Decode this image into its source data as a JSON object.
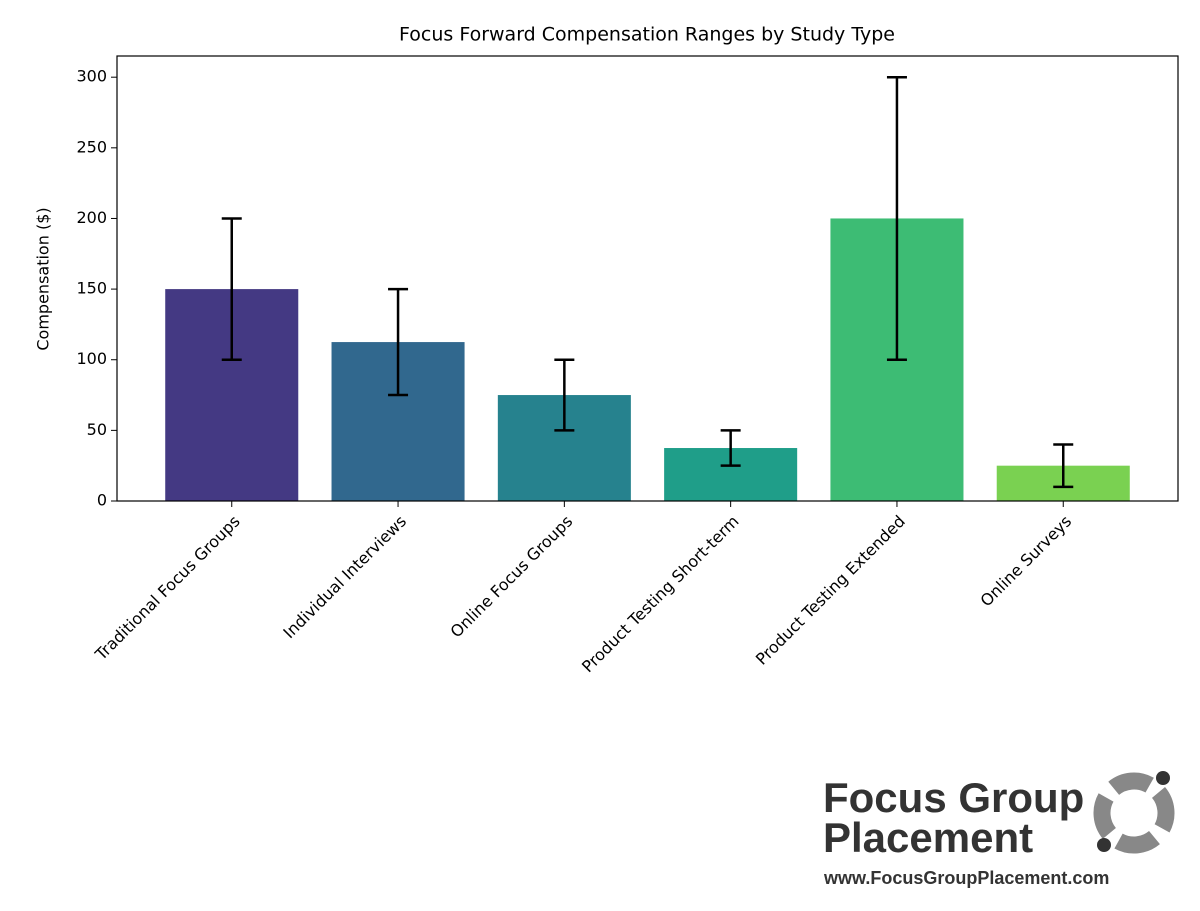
{
  "chart_data": {
    "type": "bar",
    "title": "Focus Forward Compensation Ranges by Study Type",
    "y_label": "Compensation ($)",
    "categories": [
      "Traditional Focus Groups",
      "Individual Interviews",
      "Online Focus Groups",
      "Product Testing Short-term",
      "Product Testing Extended",
      "Online Surveys"
    ],
    "values": [
      150,
      112.5,
      75,
      37.5,
      200,
      25
    ],
    "errors": [
      50,
      37.5,
      25,
      12.5,
      100,
      15
    ],
    "colors": [
      "#443983",
      "#31688e",
      "#26828e",
      "#1f9e89",
      "#3dbc74",
      "#7ad151"
    ],
    "error_color": "#000000",
    "ylim": [
      0,
      315
    ],
    "yticks": [
      0,
      50,
      100,
      150,
      200,
      250,
      300
    ],
    "grid": false
  },
  "logo": {
    "line1": "Focus Group",
    "line2": "Placement",
    "url": "www.FocusGroupPlacement.com"
  }
}
